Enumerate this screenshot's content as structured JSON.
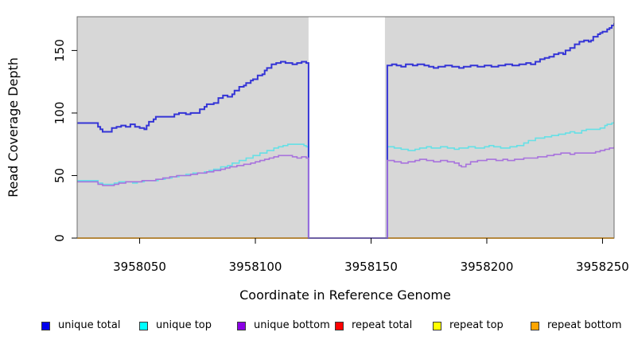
{
  "chart_data": {
    "type": "line",
    "title": "",
    "xlabel": "Coordinate in Reference Genome",
    "ylabel": "Read Coverage Depth",
    "x_range": [
      3958023,
      3958255
    ],
    "y_range": [
      0,
      177
    ],
    "x_ticks": [
      3958050,
      3958100,
      3958150,
      3958200,
      3958250
    ],
    "y_ticks": [
      0,
      50,
      100,
      150
    ],
    "grid": false,
    "legend_position": "bottom",
    "panel_bg": "#d7d7d7",
    "panel_border": "#6e6e6e",
    "gap_region": {
      "x_start": 3958123,
      "x_end": 3958156,
      "fill": "#ffffff"
    },
    "draw_order": [
      3,
      4,
      5,
      1,
      0,
      2
    ],
    "series": [
      {
        "name": "unique total",
        "legend_color": "#0000ee",
        "line_color": "#3434d6",
        "line_width": 2,
        "points": [
          [
            3958023,
            92
          ],
          [
            3958030,
            92
          ],
          [
            3958032,
            89
          ],
          [
            3958033,
            87
          ],
          [
            3958034,
            85
          ],
          [
            3958037,
            85
          ],
          [
            3958038,
            88
          ],
          [
            3958040,
            89
          ],
          [
            3958042,
            90
          ],
          [
            3958044,
            89
          ],
          [
            3958046,
            91
          ],
          [
            3958048,
            89
          ],
          [
            3958050,
            88
          ],
          [
            3958052,
            87
          ],
          [
            3958053,
            90
          ],
          [
            3958054,
            93
          ],
          [
            3958056,
            95
          ],
          [
            3958057,
            97
          ],
          [
            3958064,
            97
          ],
          [
            3958065,
            99
          ],
          [
            3958067,
            100
          ],
          [
            3958070,
            99
          ],
          [
            3958072,
            100
          ],
          [
            3958076,
            103
          ],
          [
            3958078,
            105
          ],
          [
            3958079,
            107
          ],
          [
            3958082,
            108
          ],
          [
            3958084,
            112
          ],
          [
            3958086,
            114
          ],
          [
            3958088,
            113
          ],
          [
            3958090,
            115
          ],
          [
            3958091,
            118
          ],
          [
            3958093,
            121
          ],
          [
            3958095,
            122
          ],
          [
            3958096,
            124
          ],
          [
            3958098,
            126
          ],
          [
            3958099,
            127
          ],
          [
            3958101,
            130
          ],
          [
            3958103,
            131
          ],
          [
            3958104,
            134
          ],
          [
            3958105,
            136
          ],
          [
            3958107,
            139
          ],
          [
            3958109,
            140
          ],
          [
            3958111,
            141
          ],
          [
            3958113,
            140
          ],
          [
            3958116,
            139
          ],
          [
            3958118,
            140
          ],
          [
            3958120,
            141
          ],
          [
            3958122,
            140
          ],
          [
            3958123,
            0
          ],
          [
            3958156,
            0
          ],
          [
            3958157,
            138
          ],
          [
            3958159,
            139
          ],
          [
            3958161,
            138
          ],
          [
            3958163,
            137
          ],
          [
            3958165,
            139
          ],
          [
            3958168,
            138
          ],
          [
            3958170,
            139
          ],
          [
            3958173,
            138
          ],
          [
            3958175,
            137
          ],
          [
            3958177,
            136
          ],
          [
            3958179,
            137
          ],
          [
            3958182,
            138
          ],
          [
            3958185,
            137
          ],
          [
            3958188,
            136
          ],
          [
            3958190,
            137
          ],
          [
            3958193,
            138
          ],
          [
            3958196,
            137
          ],
          [
            3958199,
            138
          ],
          [
            3958202,
            137
          ],
          [
            3958205,
            138
          ],
          [
            3958208,
            139
          ],
          [
            3958211,
            138
          ],
          [
            3958214,
            139
          ],
          [
            3958217,
            140
          ],
          [
            3958219,
            139
          ],
          [
            3958221,
            141
          ],
          [
            3958223,
            143
          ],
          [
            3958225,
            144
          ],
          [
            3958227,
            145
          ],
          [
            3958229,
            147
          ],
          [
            3958231,
            148
          ],
          [
            3958233,
            147
          ],
          [
            3958234,
            150
          ],
          [
            3958236,
            152
          ],
          [
            3958238,
            155
          ],
          [
            3958240,
            157
          ],
          [
            3958242,
            158
          ],
          [
            3958244,
            157
          ],
          [
            3958245,
            158
          ],
          [
            3958246,
            161
          ],
          [
            3958248,
            163
          ],
          [
            3958249,
            164
          ],
          [
            3958250,
            165
          ],
          [
            3958252,
            167
          ],
          [
            3958253,
            168
          ],
          [
            3958254,
            170
          ],
          [
            3958255,
            172
          ]
        ]
      },
      {
        "name": "unique top",
        "legend_color": "#00ffff",
        "line_color": "#66e0e6",
        "line_width": 1.6,
        "points": [
          [
            3958023,
            46
          ],
          [
            3958030,
            46
          ],
          [
            3958032,
            44
          ],
          [
            3958034,
            43
          ],
          [
            3958037,
            43
          ],
          [
            3958039,
            44
          ],
          [
            3958041,
            45
          ],
          [
            3958045,
            45
          ],
          [
            3958047,
            44
          ],
          [
            3958049,
            45
          ],
          [
            3958052,
            46
          ],
          [
            3958056,
            46
          ],
          [
            3958058,
            47
          ],
          [
            3958061,
            48
          ],
          [
            3958064,
            49
          ],
          [
            3958067,
            50
          ],
          [
            3958070,
            51
          ],
          [
            3958073,
            52
          ],
          [
            3958076,
            52
          ],
          [
            3958078,
            53
          ],
          [
            3958080,
            54
          ],
          [
            3958082,
            55
          ],
          [
            3958085,
            57
          ],
          [
            3958088,
            58
          ],
          [
            3958090,
            60
          ],
          [
            3958093,
            62
          ],
          [
            3958096,
            64
          ],
          [
            3958099,
            66
          ],
          [
            3958102,
            68
          ],
          [
            3958105,
            70
          ],
          [
            3958108,
            72
          ],
          [
            3958110,
            73
          ],
          [
            3958112,
            74
          ],
          [
            3958114,
            75
          ],
          [
            3958119,
            75
          ],
          [
            3958121,
            74
          ],
          [
            3958122,
            73
          ],
          [
            3958123,
            0
          ],
          [
            3958156,
            0
          ],
          [
            3958157,
            73
          ],
          [
            3958160,
            72
          ],
          [
            3958163,
            71
          ],
          [
            3958166,
            70
          ],
          [
            3958169,
            71
          ],
          [
            3958171,
            72
          ],
          [
            3958174,
            73
          ],
          [
            3958176,
            72
          ],
          [
            3958180,
            73
          ],
          [
            3958183,
            72
          ],
          [
            3958186,
            71
          ],
          [
            3958188,
            72
          ],
          [
            3958192,
            73
          ],
          [
            3958195,
            72
          ],
          [
            3958199,
            73
          ],
          [
            3958201,
            74
          ],
          [
            3958203,
            73
          ],
          [
            3958206,
            72
          ],
          [
            3958210,
            73
          ],
          [
            3958213,
            74
          ],
          [
            3958216,
            76
          ],
          [
            3958218,
            78
          ],
          [
            3958221,
            80
          ],
          [
            3958225,
            81
          ],
          [
            3958228,
            82
          ],
          [
            3958231,
            83
          ],
          [
            3958234,
            84
          ],
          [
            3958236,
            85
          ],
          [
            3958238,
            84
          ],
          [
            3958241,
            86
          ],
          [
            3958243,
            87
          ],
          [
            3958247,
            87
          ],
          [
            3958249,
            88
          ],
          [
            3958251,
            90
          ],
          [
            3958252,
            91
          ],
          [
            3958254,
            92
          ],
          [
            3958255,
            93
          ]
        ]
      },
      {
        "name": "unique bottom",
        "legend_color": "#8b00e6",
        "line_color": "#a873dd",
        "line_width": 1.6,
        "points": [
          [
            3958023,
            45
          ],
          [
            3958030,
            45
          ],
          [
            3958032,
            43
          ],
          [
            3958034,
            42
          ],
          [
            3958037,
            42
          ],
          [
            3958039,
            43
          ],
          [
            3958041,
            44
          ],
          [
            3958044,
            45
          ],
          [
            3958048,
            45
          ],
          [
            3958051,
            46
          ],
          [
            3958055,
            46
          ],
          [
            3958057,
            47
          ],
          [
            3958060,
            48
          ],
          [
            3958063,
            49
          ],
          [
            3958066,
            50
          ],
          [
            3958070,
            50
          ],
          [
            3958072,
            51
          ],
          [
            3958075,
            52
          ],
          [
            3958079,
            53
          ],
          [
            3958082,
            54
          ],
          [
            3958085,
            55
          ],
          [
            3958087,
            56
          ],
          [
            3958089,
            57
          ],
          [
            3958092,
            58
          ],
          [
            3958095,
            59
          ],
          [
            3958098,
            60
          ],
          [
            3958100,
            61
          ],
          [
            3958102,
            62
          ],
          [
            3958104,
            63
          ],
          [
            3958106,
            64
          ],
          [
            3958108,
            65
          ],
          [
            3958110,
            66
          ],
          [
            3958114,
            66
          ],
          [
            3958116,
            65
          ],
          [
            3958118,
            64
          ],
          [
            3958120,
            65
          ],
          [
            3958122,
            64
          ],
          [
            3958123,
            0
          ],
          [
            3958156,
            0
          ],
          [
            3958157,
            62
          ],
          [
            3958160,
            61
          ],
          [
            3958163,
            60
          ],
          [
            3958166,
            61
          ],
          [
            3958169,
            62
          ],
          [
            3958171,
            63
          ],
          [
            3958174,
            62
          ],
          [
            3958177,
            61
          ],
          [
            3958180,
            62
          ],
          [
            3958183,
            61
          ],
          [
            3958186,
            60
          ],
          [
            3958188,
            58
          ],
          [
            3958189,
            57
          ],
          [
            3958191,
            59
          ],
          [
            3958193,
            61
          ],
          [
            3958196,
            62
          ],
          [
            3958200,
            63
          ],
          [
            3958204,
            62
          ],
          [
            3958207,
            63
          ],
          [
            3958209,
            62
          ],
          [
            3958212,
            63
          ],
          [
            3958216,
            64
          ],
          [
            3958222,
            65
          ],
          [
            3958226,
            66
          ],
          [
            3958229,
            67
          ],
          [
            3958232,
            68
          ],
          [
            3958236,
            67
          ],
          [
            3958238,
            68
          ],
          [
            3958245,
            68
          ],
          [
            3958247,
            69
          ],
          [
            3958249,
            70
          ],
          [
            3958251,
            71
          ],
          [
            3958253,
            72
          ],
          [
            3958255,
            73
          ]
        ]
      },
      {
        "name": "repeat total",
        "legend_color": "#ff0000",
        "line_color": "#e60000",
        "line_width": 1.5,
        "segments": [
          [
            [
              3958023,
              0
            ],
            [
              3958123,
              0
            ]
          ],
          [
            [
              3958156,
              0
            ],
            [
              3958255,
              0
            ]
          ]
        ]
      },
      {
        "name": "repeat top",
        "legend_color": "#ffff00",
        "line_color": "#f5f500",
        "line_width": 1.5,
        "segments": [
          [
            [
              3958023,
              0
            ],
            [
              3958123,
              0
            ]
          ],
          [
            [
              3958156,
              0
            ],
            [
              3958255,
              0
            ]
          ]
        ]
      },
      {
        "name": "repeat bottom",
        "legend_color": "#ffa500",
        "line_color": "#ff9d00",
        "line_width": 1.8,
        "segments": [
          [
            [
              3958023,
              0
            ],
            [
              3958123,
              0
            ]
          ],
          [
            [
              3958156,
              0
            ],
            [
              3958255,
              0
            ]
          ]
        ]
      }
    ]
  }
}
